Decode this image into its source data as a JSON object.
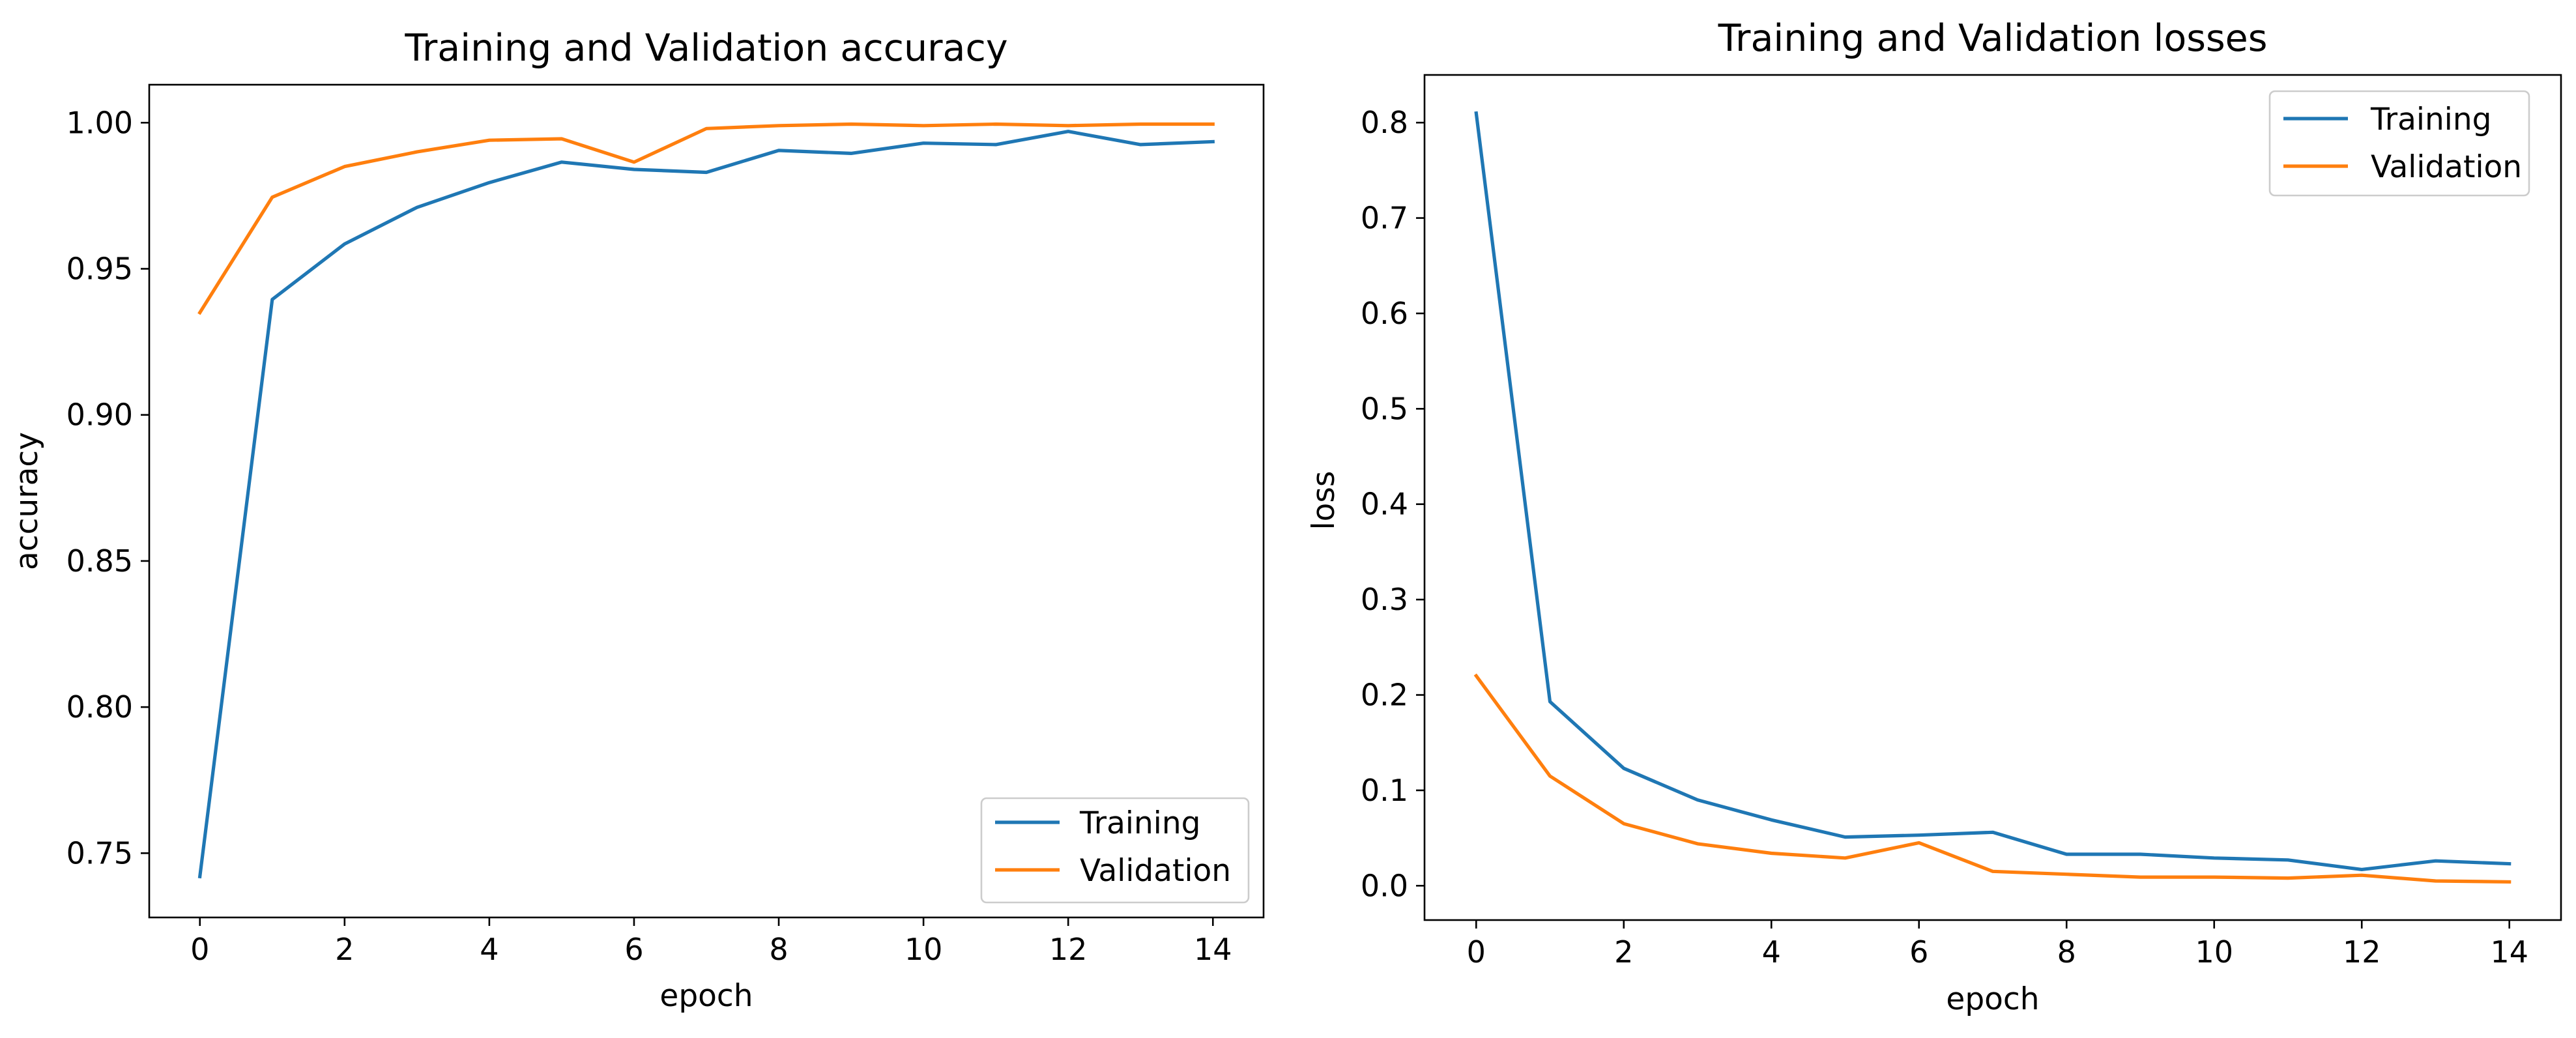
{
  "chart_data": [
    {
      "type": "line",
      "title": "Training and Validation accuracy",
      "xlabel": "epoch",
      "ylabel": "accuracy",
      "xlim": [
        -0.7,
        14.7
      ],
      "ylim": [
        0.728,
        1.013
      ],
      "x_ticks": [
        0,
        2,
        4,
        6,
        8,
        10,
        12,
        14
      ],
      "x_tick_labels": [
        "0",
        "2",
        "4",
        "6",
        "8",
        "10",
        "12",
        "14"
      ],
      "y_ticks": [
        0.75,
        0.8,
        0.85,
        0.9,
        0.95,
        1.0
      ],
      "y_tick_labels": [
        "0.75",
        "0.80",
        "0.85",
        "0.90",
        "0.95",
        "1.00"
      ],
      "grid": false,
      "legend_position": "lower-right",
      "x": [
        0,
        1,
        2,
        3,
        4,
        5,
        6,
        7,
        8,
        9,
        10,
        11,
        12,
        13,
        14
      ],
      "series": [
        {
          "name": "Training",
          "color": "#1f77b4",
          "values": [
            0.742,
            0.9395,
            0.9585,
            0.971,
            0.9795,
            0.9865,
            0.984,
            0.983,
            0.9905,
            0.9895,
            0.993,
            0.9925,
            0.997,
            0.9925,
            0.9935
          ]
        },
        {
          "name": "Validation",
          "color": "#ff7f0e",
          "values": [
            0.935,
            0.9745,
            0.985,
            0.99,
            0.994,
            0.9945,
            0.9865,
            0.998,
            0.999,
            0.9995,
            0.999,
            0.9995,
            0.999,
            0.9995,
            0.9995
          ]
        }
      ]
    },
    {
      "type": "line",
      "title": "Training and Validation losses",
      "xlabel": "epoch",
      "ylabel": "loss",
      "xlim": [
        -0.7,
        14.7
      ],
      "ylim": [
        -0.036,
        0.85
      ],
      "x_ticks": [
        0,
        2,
        4,
        6,
        8,
        10,
        12,
        14
      ],
      "x_tick_labels": [
        "0",
        "2",
        "4",
        "6",
        "8",
        "10",
        "12",
        "14"
      ],
      "y_ticks": [
        0.0,
        0.1,
        0.2,
        0.3,
        0.4,
        0.5,
        0.6,
        0.7,
        0.8
      ],
      "y_tick_labels": [
        "0.0",
        "0.1",
        "0.2",
        "0.3",
        "0.4",
        "0.5",
        "0.6",
        "0.7",
        "0.8"
      ],
      "grid": false,
      "legend_position": "upper-right",
      "x": [
        0,
        1,
        2,
        3,
        4,
        5,
        6,
        7,
        8,
        9,
        10,
        11,
        12,
        13,
        14
      ],
      "series": [
        {
          "name": "Training",
          "color": "#1f77b4",
          "values": [
            0.81,
            0.193,
            0.123,
            0.09,
            0.069,
            0.051,
            0.053,
            0.056,
            0.033,
            0.033,
            0.029,
            0.027,
            0.017,
            0.026,
            0.023
          ]
        },
        {
          "name": "Validation",
          "color": "#ff7f0e",
          "values": [
            0.22,
            0.115,
            0.065,
            0.044,
            0.034,
            0.029,
            0.045,
            0.015,
            0.012,
            0.009,
            0.009,
            0.008,
            0.011,
            0.005,
            0.004
          ]
        }
      ]
    }
  ]
}
